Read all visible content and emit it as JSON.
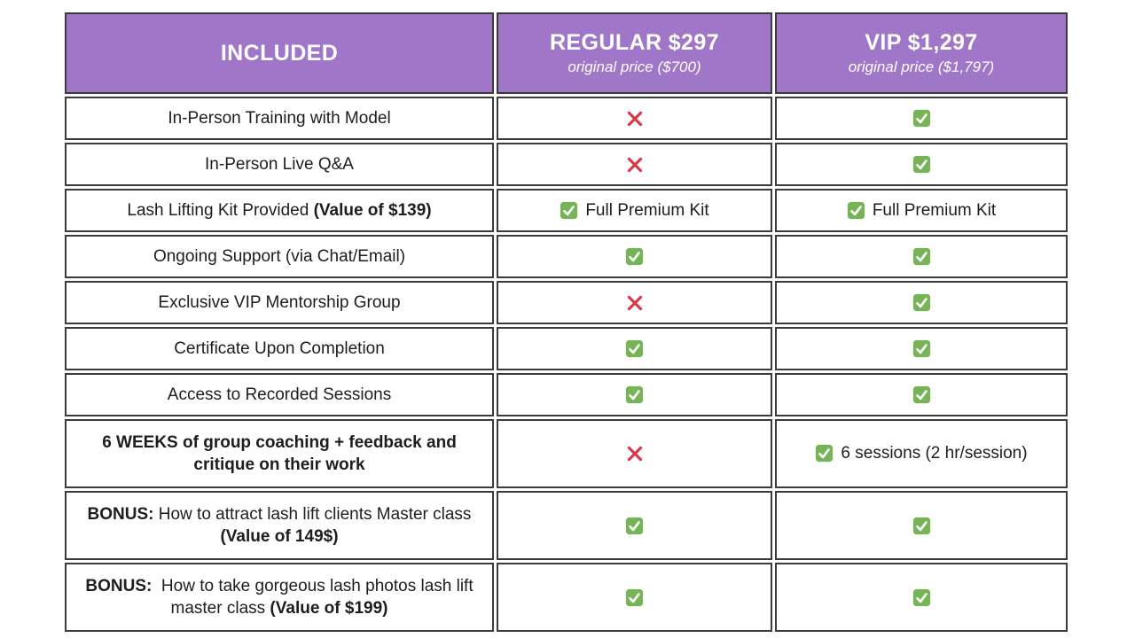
{
  "colors": {
    "header_bg": "#a077c8",
    "header_text": "#ffffff",
    "border": "#3b3b3b",
    "check_green": "#77b357",
    "cross_red": "#d9364a",
    "body_text": "#1d1d1d"
  },
  "table": {
    "header": {
      "included_label": "INCLUDED",
      "regular_title": "REGULAR $297",
      "regular_subtitle": "original price ($700)",
      "vip_title": "VIP $1,297",
      "vip_subtitle": "original price ($1,797)"
    },
    "rows": [
      {
        "feature": [
          {
            "text": "In-Person Training with Model",
            "bold": false
          }
        ],
        "regular": {
          "icon": "cross",
          "label": ""
        },
        "vip": {
          "icon": "check",
          "label": ""
        }
      },
      {
        "feature": [
          {
            "text": "In-Person Live Q&A",
            "bold": false
          }
        ],
        "regular": {
          "icon": "cross",
          "label": ""
        },
        "vip": {
          "icon": "check",
          "label": ""
        }
      },
      {
        "feature": [
          {
            "text": "Lash Lifting Kit Provided ",
            "bold": false
          },
          {
            "text": "(Value of $139)",
            "bold": true
          }
        ],
        "regular": {
          "icon": "check",
          "label": "Full Premium Kit"
        },
        "vip": {
          "icon": "check",
          "label": "Full Premium Kit"
        }
      },
      {
        "feature": [
          {
            "text": "Ongoing Support (via Chat/Email)",
            "bold": false
          }
        ],
        "regular": {
          "icon": "check",
          "label": ""
        },
        "vip": {
          "icon": "check",
          "label": ""
        }
      },
      {
        "feature": [
          {
            "text": "Exclusive VIP Mentorship Group",
            "bold": false
          }
        ],
        "regular": {
          "icon": "cross",
          "label": ""
        },
        "vip": {
          "icon": "check",
          "label": ""
        }
      },
      {
        "feature": [
          {
            "text": "Certificate Upon Completion",
            "bold": false
          }
        ],
        "regular": {
          "icon": "check",
          "label": ""
        },
        "vip": {
          "icon": "check",
          "label": ""
        }
      },
      {
        "feature": [
          {
            "text": "Access to Recorded Sessions",
            "bold": false
          }
        ],
        "regular": {
          "icon": "check",
          "label": ""
        },
        "vip": {
          "icon": "check",
          "label": ""
        }
      },
      {
        "feature": [
          {
            "text": "6 WEEKS of group coaching + feedback and critique on their work",
            "bold": true
          }
        ],
        "regular": {
          "icon": "cross",
          "label": ""
        },
        "vip": {
          "icon": "check",
          "label": "6 sessions (2 hr/session)"
        }
      },
      {
        "feature": [
          {
            "text": "BONUS:",
            "bold": true
          },
          {
            "text": " How to attract lash lift clients Master class ",
            "bold": false
          },
          {
            "text": "(Value of 149$)",
            "bold": true
          }
        ],
        "regular": {
          "icon": "check",
          "label": ""
        },
        "vip": {
          "icon": "check",
          "label": ""
        }
      },
      {
        "feature": [
          {
            "text": "BONUS:",
            "bold": true
          },
          {
            "text": "  How to take gorgeous lash photos lash lift master class ",
            "bold": false
          },
          {
            "text": "(Value of $199)",
            "bold": true
          }
        ],
        "regular": {
          "icon": "check",
          "label": ""
        },
        "vip": {
          "icon": "check",
          "label": ""
        }
      }
    ]
  },
  "chart_data": {
    "type": "table",
    "title": "Pricing comparison: REGULAR vs VIP lash lift course",
    "columns": [
      "INCLUDED",
      "REGULAR $297 — original price ($700)",
      "VIP $1,297 — original price ($1,797)"
    ],
    "rows": [
      [
        "In-Person Training with Model",
        "no",
        "yes"
      ],
      [
        "In-Person Live Q&A",
        "no",
        "yes"
      ],
      [
        "Lash Lifting Kit Provided (Value of $139)",
        "yes — Full Premium Kit",
        "yes — Full Premium Kit"
      ],
      [
        "Ongoing Support (via Chat/Email)",
        "yes",
        "yes"
      ],
      [
        "Exclusive VIP Mentorship Group",
        "no",
        "yes"
      ],
      [
        "Certificate Upon Completion",
        "yes",
        "yes"
      ],
      [
        "Access to Recorded Sessions",
        "yes",
        "yes"
      ],
      [
        "6 WEEKS of group coaching + feedback and critique on their work",
        "no",
        "yes — 6 sessions (2 hr/session)"
      ],
      [
        "BONUS: How to attract lash lift clients Master class (Value of 149$)",
        "yes",
        "yes"
      ],
      [
        "BONUS: How to take gorgeous lash photos lash lift master class (Value of $199)",
        "yes",
        "yes"
      ]
    ]
  }
}
